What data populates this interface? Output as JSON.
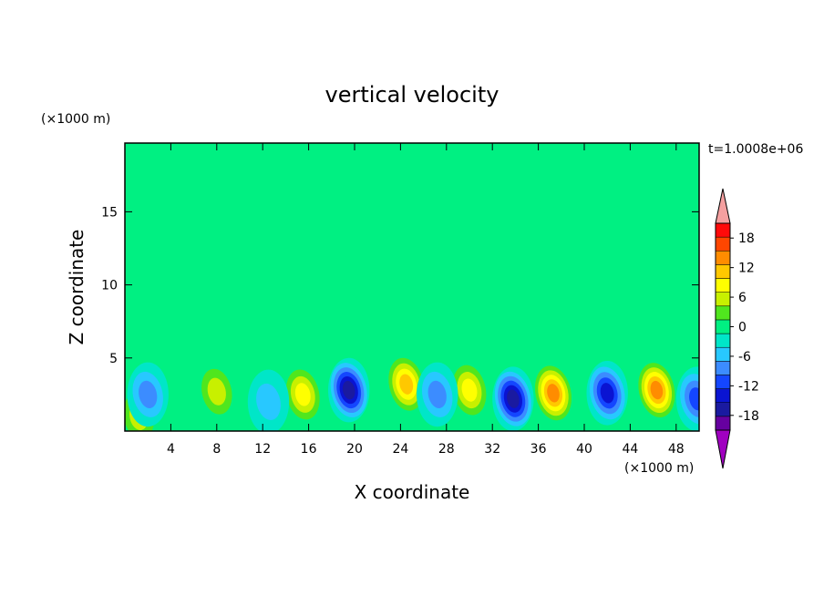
{
  "chart_data": {
    "type": "heatmap",
    "title": "vertical velocity",
    "xlabel": "X coordinate",
    "ylabel": "Z coordinate",
    "x_unit": "(×1000 m)",
    "y_unit": "(×1000 m)",
    "time_label": "t=1.0008e+06",
    "xlim": [
      0,
      50
    ],
    "ylim": [
      0,
      19.7
    ],
    "xticks": [
      4,
      8,
      12,
      16,
      20,
      24,
      28,
      32,
      36,
      40,
      44,
      48
    ],
    "yticks": [
      5,
      10,
      15
    ],
    "colorbar": {
      "levels": [
        -21,
        -18,
        -15,
        -12,
        -9,
        -6,
        -3,
        0,
        3,
        6,
        9,
        12,
        15,
        18,
        21
      ],
      "tick_labels": [
        "18",
        "12",
        "6",
        "0",
        "-6",
        "-12",
        "-18"
      ],
      "tick_values": [
        18,
        12,
        6,
        0,
        -6,
        -12,
        -18
      ],
      "colors": [
        "#6600a0",
        "#1a1aa0",
        "#0a14d2",
        "#1446ff",
        "#3c8cff",
        "#28c8ff",
        "#00e6c8",
        "#00f082",
        "#50e61e",
        "#c8f000",
        "#ffff00",
        "#ffc800",
        "#ff8c00",
        "#ff4600",
        "#ff0a0a"
      ],
      "under_color": "#a000c0",
      "over_color": "#f5a0a0"
    },
    "updrafts": [
      {
        "x": 8.0,
        "z": 2.7,
        "w": 7
      },
      {
        "x": 1.2,
        "z": 1.0,
        "w": 6
      },
      {
        "x": 15.5,
        "z": 2.5,
        "w": 9
      },
      {
        "x": 24.5,
        "z": 3.2,
        "w": 14
      },
      {
        "x": 30.0,
        "z": 2.8,
        "w": 11
      },
      {
        "x": 37.3,
        "z": 2.6,
        "w": 16
      },
      {
        "x": 46.3,
        "z": 2.8,
        "w": 16
      }
    ],
    "downdrafts": [
      {
        "x": 2.0,
        "z": 2.5,
        "w": -6
      },
      {
        "x": 12.5,
        "z": 2.0,
        "w": -4
      },
      {
        "x": 19.5,
        "z": 2.8,
        "w": -17
      },
      {
        "x": 27.2,
        "z": 2.5,
        "w": -6
      },
      {
        "x": 33.8,
        "z": 2.2,
        "w": -16
      },
      {
        "x": 42.0,
        "z": 2.6,
        "w": -13
      },
      {
        "x": 49.8,
        "z": 2.2,
        "w": -10
      }
    ]
  }
}
